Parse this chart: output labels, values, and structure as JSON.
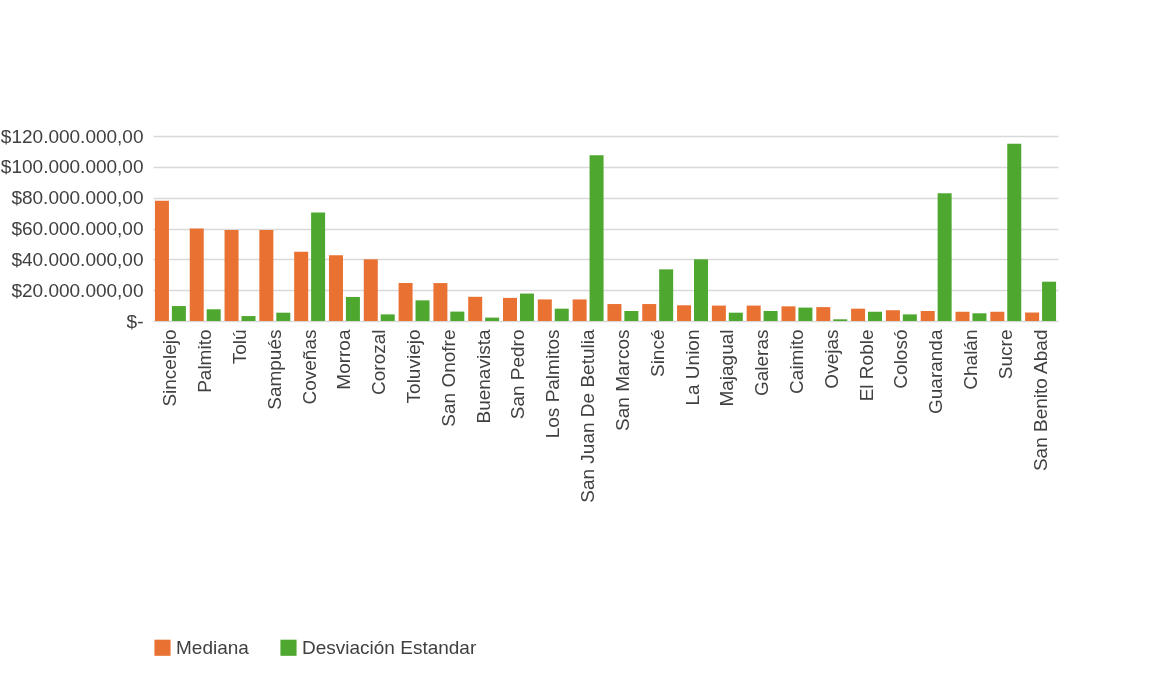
{
  "chart_data": {
    "type": "bar",
    "categories": [
      "Sincelejo",
      "Palmito",
      "Tolú",
      "Sampués",
      "Coveñas",
      "Morroa",
      "Corozal",
      "Toluviejo",
      "San Onofre",
      "Buenavista",
      "San Pedro",
      "Los Palmitos",
      "San Juan De Betulia",
      "San Marcos",
      "Sincé",
      "La Union",
      "Majagual",
      "Galeras",
      "Caimito",
      "Ovejas",
      "El Roble",
      "Colosó",
      "Guaranda",
      "Chalán",
      "Sucre",
      "San Benito Abad"
    ],
    "series": [
      {
        "name": "Mediana",
        "color": "#e97132",
        "values": [
          78000000,
          60000000,
          59000000,
          59000000,
          45000000,
          42600000,
          40000000,
          24600000,
          24600000,
          15700000,
          15000000,
          14000000,
          14000000,
          11000000,
          11000000,
          10200000,
          10000000,
          10000000,
          9500000,
          9000000,
          8000000,
          7000000,
          6500000,
          6000000,
          6000000,
          5500000
        ]
      },
      {
        "name": "Desviación Estandar",
        "color": "#4ea72e",
        "values": [
          9700000,
          7600000,
          3200000,
          5400000,
          70300000,
          15600000,
          4300000,
          13400000,
          6100000,
          2200000,
          17800000,
          8000000,
          107500000,
          6500000,
          33500000,
          40000000,
          5400000,
          6500000,
          8700000,
          1100000,
          6000000,
          4300000,
          82800000,
          5000000,
          115000000,
          25500000
        ]
      }
    ],
    "ylim": [
      0,
      120000000
    ],
    "yticks": [
      {
        "value": 0,
        "label": "$-"
      },
      {
        "value": 20000000,
        "label": "$20.000.000,00"
      },
      {
        "value": 40000000,
        "label": "$40.000.000,00"
      },
      {
        "value": 60000000,
        "label": "$60.000.000,00"
      },
      {
        "value": 80000000,
        "label": "$80.000.000,00"
      },
      {
        "value": 100000000,
        "label": "$100.000.000,00"
      },
      {
        "value": 120000000,
        "label": "$120.000.000,00"
      }
    ],
    "grid": "y",
    "legend": "bottom"
  }
}
